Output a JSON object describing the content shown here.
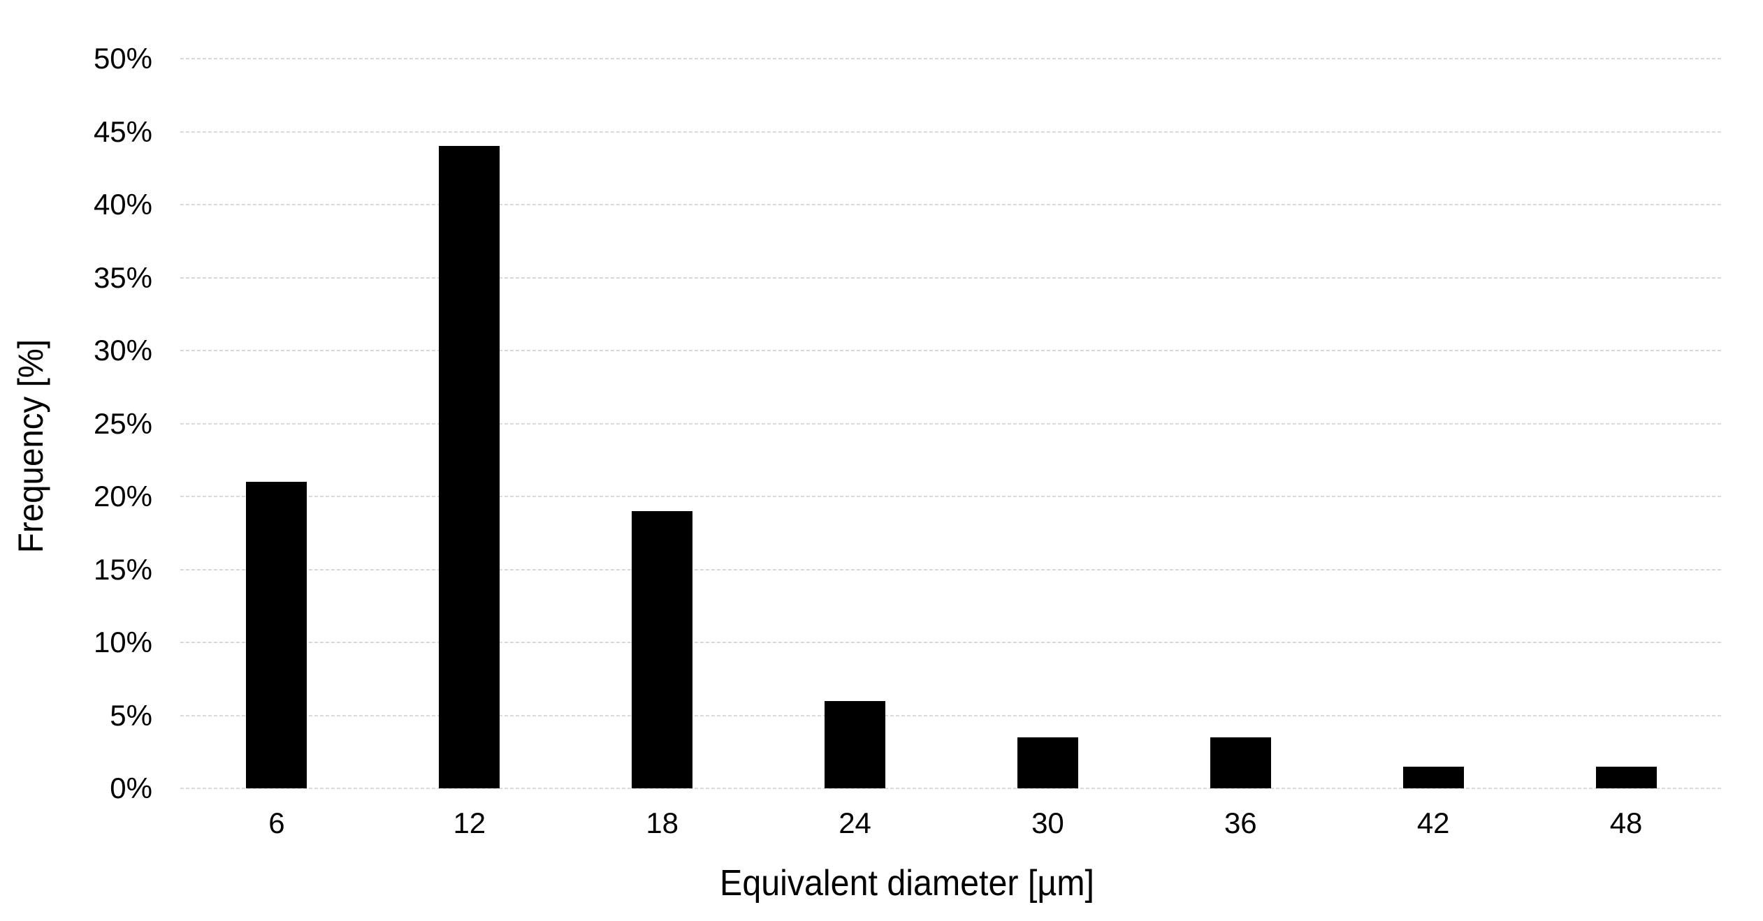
{
  "chart_data": {
    "type": "bar",
    "title": "",
    "categories": [
      "6",
      "12",
      "18",
      "24",
      "30",
      "36",
      "42",
      "48"
    ],
    "values": [
      21,
      44,
      19,
      6,
      3.5,
      3.5,
      1.5,
      1.5
    ],
    "xlabel": "Equivalent diameter [µm]",
    "ylabel": "Frequency [%]",
    "ylim": [
      0,
      50
    ],
    "ytick_step": 5,
    "ytick_labels": [
      "0%",
      "5%",
      "10%",
      "15%",
      "20%",
      "25%",
      "30%",
      "35%",
      "40%",
      "45%",
      "50%"
    ],
    "legend": "none",
    "grid": "horizontal-dotted",
    "colors": {
      "bar": "#000000",
      "gridline": "#d9d9d9",
      "axis_line": "#d9d9d9",
      "text": "#000000",
      "background": "#ffffff"
    }
  }
}
